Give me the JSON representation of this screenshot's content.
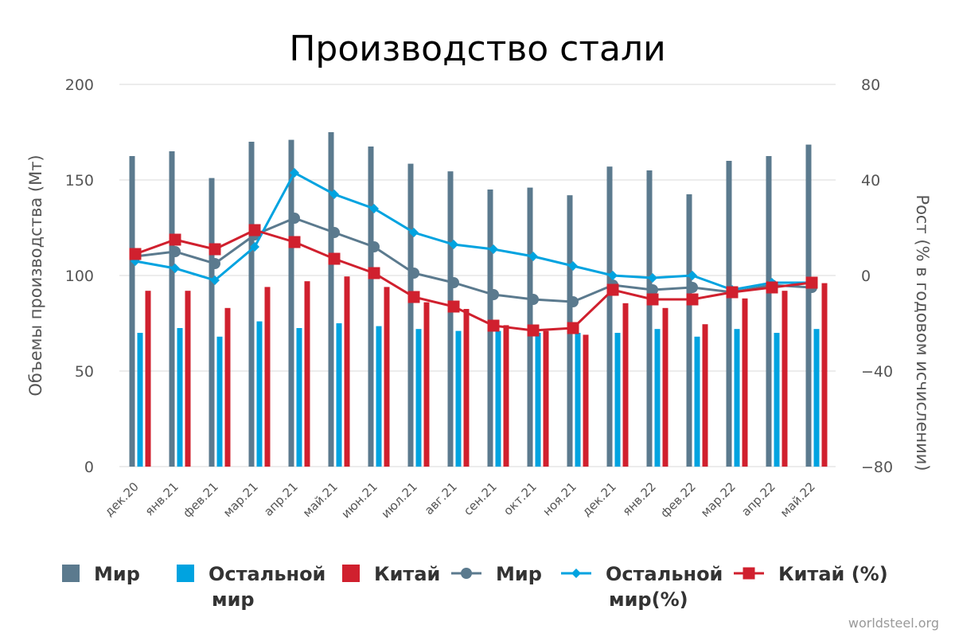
{
  "chart_data": {
    "type": "bar",
    "title": "Производство стали",
    "ylabel": "Объемы производства (Мт)",
    "y2label": "Рост (% в годовом исчислении)",
    "ylim": [
      0,
      200
    ],
    "y2lim": [
      -80,
      80
    ],
    "yticks": [
      "0",
      "50",
      "100",
      "150",
      "200"
    ],
    "y2ticks": [
      "−80",
      "−40",
      "0",
      "40",
      "80"
    ],
    "grid": true,
    "legend_position": "bottom",
    "categories": [
      "дек.20",
      "янв.21",
      "фев.21",
      "мар.21",
      "апр.21",
      "май.21",
      "июн.21",
      "июл.21",
      "авг.21",
      "сен.21",
      "окт.21",
      "ноя.21",
      "дек.21",
      "янв.22",
      "фев.22",
      "мар.22",
      "апр.22",
      "май.22"
    ],
    "bar_series": [
      {
        "name": "Мир",
        "color": "#5b7a8e",
        "values": [
          162.5,
          165,
          151,
          170,
          171,
          175,
          167.5,
          158.5,
          154.5,
          145,
          146,
          142,
          157,
          155,
          142.5,
          160,
          162.5,
          168.5
        ]
      },
      {
        "name": "Остальной мир",
        "color": "#00a3e0",
        "values": [
          70,
          72.5,
          68,
          76,
          72.5,
          75,
          73.5,
          72,
          71,
          71,
          70,
          70,
          70,
          72,
          68,
          72,
          70,
          72
        ]
      },
      {
        "name": "Китай",
        "color": "#d0202e",
        "values": [
          92,
          92,
          83,
          94,
          97,
          99.5,
          94,
          86,
          82.5,
          74,
          71,
          69,
          85.5,
          83,
          74.5,
          88,
          92,
          96
        ]
      }
    ],
    "line_series": [
      {
        "name": "Мир",
        "color": "#5b7a8e",
        "marker": "circle",
        "values": [
          8,
          10,
          5,
          17,
          24,
          18,
          12,
          1,
          -3,
          -8,
          -10,
          -11,
          -4,
          -6,
          -5,
          -7,
          -4,
          -5
        ]
      },
      {
        "name": "Остальной мир(%)",
        "color": "#00a3e0",
        "marker": "diamond",
        "values": [
          6,
          3,
          -2,
          12,
          43,
          34,
          28,
          18,
          13,
          11,
          8,
          4,
          0,
          -1,
          0,
          -6,
          -3,
          -3
        ]
      },
      {
        "name": "Китай (%)",
        "color": "#d0202e",
        "marker": "square",
        "values": [
          9,
          15,
          11,
          19,
          14,
          7,
          1,
          -9,
          -13,
          -21,
          -23,
          -22,
          -6,
          -10,
          -10,
          -7,
          -5,
          -3
        ]
      }
    ],
    "legend_labels": [
      {
        "lines": [
          "Мир"
        ],
        "color": "#5b7a8e",
        "kind": "bar"
      },
      {
        "lines": [
          "Остальной",
          "мир"
        ],
        "color": "#00a3e0",
        "kind": "bar"
      },
      {
        "lines": [
          "Китай"
        ],
        "color": "#d0202e",
        "kind": "bar"
      },
      {
        "lines": [
          "Мир"
        ],
        "color": "#5b7a8e",
        "kind": "line-circle"
      },
      {
        "lines": [
          "Остальной",
          "мир(%)"
        ],
        "color": "#00a3e0",
        "kind": "line-diamond"
      },
      {
        "lines": [
          "Китай (%)"
        ],
        "color": "#d0202e",
        "kind": "line-square"
      }
    ],
    "source": "worldsteel.org"
  }
}
